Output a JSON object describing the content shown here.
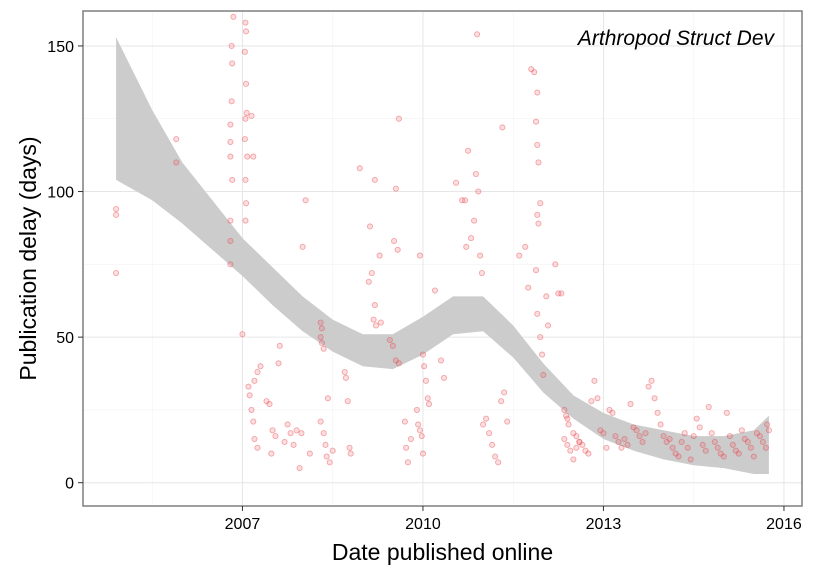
{
  "chart_data": {
    "type": "scatter",
    "annotation": "Arthropod Struct Dev",
    "xlabel": "Date published online",
    "ylabel": "Publication delay (days)",
    "xlim": [
      2004.35,
      2016.3
    ],
    "ylim": [
      -8,
      162
    ],
    "x_ticks": [
      2007,
      2010,
      2013,
      2016
    ],
    "y_ticks": [
      0,
      50,
      100,
      150
    ],
    "grid": true,
    "point_color": "#e8474d",
    "band_color": "#cccccc",
    "series": [
      {
        "kind": "points",
        "points": [
          [
            2004.9,
            94
          ],
          [
            2004.9,
            92
          ],
          [
            2004.9,
            72
          ],
          [
            2005.9,
            118
          ],
          [
            2005.9,
            110
          ],
          [
            2006.85,
            160
          ],
          [
            2006.82,
            150
          ],
          [
            2006.83,
            144
          ],
          [
            2006.82,
            131
          ],
          [
            2006.8,
            123
          ],
          [
            2006.8,
            117
          ],
          [
            2006.8,
            112
          ],
          [
            2006.83,
            104
          ],
          [
            2006.8,
            90
          ],
          [
            2006.8,
            83
          ],
          [
            2006.8,
            75
          ],
          [
            2007.05,
            158
          ],
          [
            2007.06,
            155
          ],
          [
            2007.04,
            148
          ],
          [
            2007.06,
            137
          ],
          [
            2007.07,
            127
          ],
          [
            2007.05,
            125
          ],
          [
            2007.04,
            118
          ],
          [
            2007.08,
            112
          ],
          [
            2007.05,
            104
          ],
          [
            2007.06,
            96
          ],
          [
            2007.05,
            90
          ],
          [
            2007.0,
            51
          ],
          [
            2007.15,
            126
          ],
          [
            2007.18,
            112
          ],
          [
            2007.2,
            35
          ],
          [
            2007.25,
            38
          ],
          [
            2007.3,
            40
          ],
          [
            2007.1,
            33
          ],
          [
            2007.12,
            30
          ],
          [
            2007.15,
            25
          ],
          [
            2007.18,
            21
          ],
          [
            2007.2,
            15
          ],
          [
            2007.25,
            12
          ],
          [
            2007.4,
            28
          ],
          [
            2007.45,
            27
          ],
          [
            2007.5,
            18
          ],
          [
            2007.55,
            16
          ],
          [
            2007.48,
            10
          ],
          [
            2007.6,
            41
          ],
          [
            2007.62,
            47
          ],
          [
            2007.7,
            14
          ],
          [
            2007.75,
            20
          ],
          [
            2007.8,
            17
          ],
          [
            2007.85,
            13
          ],
          [
            2007.9,
            18
          ],
          [
            2007.95,
            5
          ],
          [
            2007.98,
            17
          ],
          [
            2008.05,
            97
          ],
          [
            2008.0,
            81
          ],
          [
            2008.12,
            10
          ],
          [
            2008.3,
            55
          ],
          [
            2008.32,
            53
          ],
          [
            2008.3,
            50
          ],
          [
            2008.32,
            48
          ],
          [
            2008.35,
            46
          ],
          [
            2008.3,
            21
          ],
          [
            2008.35,
            17
          ],
          [
            2008.38,
            13
          ],
          [
            2008.4,
            9
          ],
          [
            2008.45,
            7
          ],
          [
            2008.5,
            11
          ],
          [
            2008.42,
            29
          ],
          [
            2008.7,
            38
          ],
          [
            2008.72,
            36
          ],
          [
            2008.75,
            28
          ],
          [
            2008.78,
            12
          ],
          [
            2008.8,
            10
          ],
          [
            2008.95,
            108
          ],
          [
            2009.12,
            88
          ],
          [
            2009.2,
            104
          ],
          [
            2009.28,
            78
          ],
          [
            2009.1,
            69
          ],
          [
            2009.15,
            72
          ],
          [
            2009.2,
            61
          ],
          [
            2009.18,
            56
          ],
          [
            2009.22,
            54
          ],
          [
            2009.3,
            55
          ],
          [
            2009.45,
            49
          ],
          [
            2009.5,
            47
          ],
          [
            2009.55,
            42
          ],
          [
            2009.6,
            41
          ],
          [
            2009.52,
            83
          ],
          [
            2009.58,
            80
          ],
          [
            2009.55,
            101
          ],
          [
            2009.6,
            125
          ],
          [
            2009.7,
            21
          ],
          [
            2009.72,
            12
          ],
          [
            2009.75,
            7
          ],
          [
            2009.8,
            15
          ],
          [
            2009.95,
            78
          ],
          [
            2010.0,
            44
          ],
          [
            2010.02,
            40
          ],
          [
            2010.05,
            35
          ],
          [
            2010.08,
            29
          ],
          [
            2010.1,
            27
          ],
          [
            2009.9,
            25
          ],
          [
            2009.92,
            20
          ],
          [
            2009.95,
            18
          ],
          [
            2009.98,
            16
          ],
          [
            2010.0,
            10
          ],
          [
            2010.2,
            66
          ],
          [
            2010.3,
            42
          ],
          [
            2010.35,
            36
          ],
          [
            2010.55,
            103
          ],
          [
            2010.65,
            97
          ],
          [
            2010.7,
            97
          ],
          [
            2010.75,
            114
          ],
          [
            2010.72,
            81
          ],
          [
            2010.8,
            84
          ],
          [
            2010.85,
            90
          ],
          [
            2010.88,
            106
          ],
          [
            2010.9,
            154
          ],
          [
            2010.92,
            100
          ],
          [
            2010.95,
            78
          ],
          [
            2010.98,
            72
          ],
          [
            2011.0,
            20
          ],
          [
            2011.05,
            22
          ],
          [
            2011.1,
            17
          ],
          [
            2011.15,
            13
          ],
          [
            2011.2,
            9
          ],
          [
            2011.25,
            7
          ],
          [
            2011.3,
            28
          ],
          [
            2011.35,
            31
          ],
          [
            2011.4,
            21
          ],
          [
            2011.32,
            122
          ],
          [
            2011.6,
            78
          ],
          [
            2011.7,
            81
          ],
          [
            2011.75,
            67
          ],
          [
            2011.8,
            142
          ],
          [
            2011.85,
            141
          ],
          [
            2011.9,
            134
          ],
          [
            2011.88,
            124
          ],
          [
            2011.9,
            116
          ],
          [
            2011.92,
            110
          ],
          [
            2011.95,
            96
          ],
          [
            2011.9,
            92
          ],
          [
            2011.92,
            89
          ],
          [
            2011.88,
            73
          ],
          [
            2011.9,
            58
          ],
          [
            2011.95,
            50
          ],
          [
            2011.98,
            44
          ],
          [
            2012.0,
            37
          ],
          [
            2012.05,
            64
          ],
          [
            2012.08,
            54
          ],
          [
            2012.2,
            75
          ],
          [
            2012.25,
            65
          ],
          [
            2012.3,
            65
          ],
          [
            2012.35,
            25
          ],
          [
            2012.38,
            23
          ],
          [
            2012.4,
            22
          ],
          [
            2012.42,
            20
          ],
          [
            2012.5,
            17
          ],
          [
            2012.55,
            16
          ],
          [
            2012.6,
            14
          ],
          [
            2012.65,
            13
          ],
          [
            2012.7,
            11
          ],
          [
            2012.75,
            10
          ],
          [
            2012.8,
            28
          ],
          [
            2012.85,
            35
          ],
          [
            2012.35,
            15
          ],
          [
            2012.4,
            13
          ],
          [
            2012.45,
            11
          ],
          [
            2012.5,
            8
          ],
          [
            2012.55,
            12
          ],
          [
            2012.6,
            14
          ],
          [
            2012.9,
            29
          ],
          [
            2012.95,
            18
          ],
          [
            2013.0,
            17
          ],
          [
            2013.05,
            12
          ],
          [
            2013.1,
            25
          ],
          [
            2013.15,
            24
          ],
          [
            2013.2,
            16
          ],
          [
            2013.25,
            14
          ],
          [
            2013.3,
            12
          ],
          [
            2013.35,
            15
          ],
          [
            2013.4,
            13
          ],
          [
            2013.45,
            27
          ],
          [
            2013.5,
            19
          ],
          [
            2013.55,
            18
          ],
          [
            2013.6,
            16
          ],
          [
            2013.65,
            14
          ],
          [
            2013.7,
            17
          ],
          [
            2013.75,
            33
          ],
          [
            2013.8,
            35
          ],
          [
            2013.85,
            29
          ],
          [
            2013.9,
            24
          ],
          [
            2013.95,
            20
          ],
          [
            2014.0,
            16
          ],
          [
            2014.05,
            14
          ],
          [
            2014.1,
            15
          ],
          [
            2014.15,
            12
          ],
          [
            2014.2,
            10
          ],
          [
            2014.25,
            9
          ],
          [
            2014.3,
            14
          ],
          [
            2014.35,
            17
          ],
          [
            2014.4,
            12
          ],
          [
            2014.45,
            8
          ],
          [
            2014.5,
            16
          ],
          [
            2014.55,
            22
          ],
          [
            2014.6,
            19
          ],
          [
            2014.65,
            13
          ],
          [
            2014.7,
            11
          ],
          [
            2014.75,
            26
          ],
          [
            2014.8,
            17
          ],
          [
            2014.85,
            14
          ],
          [
            2014.9,
            12
          ],
          [
            2014.95,
            10
          ],
          [
            2015.0,
            9
          ],
          [
            2015.05,
            24
          ],
          [
            2015.1,
            16
          ],
          [
            2015.15,
            13
          ],
          [
            2015.2,
            11
          ],
          [
            2015.25,
            10
          ],
          [
            2015.3,
            18
          ],
          [
            2015.35,
            15
          ],
          [
            2015.4,
            14
          ],
          [
            2015.45,
            12
          ],
          [
            2015.5,
            9
          ],
          [
            2015.55,
            17
          ],
          [
            2015.6,
            16
          ],
          [
            2015.65,
            14
          ],
          [
            2015.7,
            12
          ],
          [
            2015.72,
            20
          ],
          [
            2015.75,
            18
          ]
        ]
      },
      {
        "kind": "band",
        "x": [
          2004.9,
          2005.5,
          2006.0,
          2006.5,
          2007.0,
          2007.5,
          2008.0,
          2008.5,
          2009.0,
          2009.5,
          2010.0,
          2010.5,
          2011.0,
          2011.5,
          2012.0,
          2012.5,
          2013.0,
          2013.5,
          2014.0,
          2014.5,
          2015.0,
          2015.5,
          2015.75
        ],
        "lower": [
          104,
          97,
          89,
          80,
          71,
          61,
          52,
          45,
          40,
          39,
          44,
          51,
          52,
          43,
          31,
          22,
          15,
          11,
          8,
          6,
          5,
          3,
          3
        ],
        "upper": [
          153,
          128,
          110,
          97,
          84,
          74,
          64,
          56,
          51,
          51,
          57,
          64,
          64,
          54,
          41,
          30,
          24,
          20,
          18,
          16,
          16,
          18,
          23
        ]
      }
    ]
  }
}
